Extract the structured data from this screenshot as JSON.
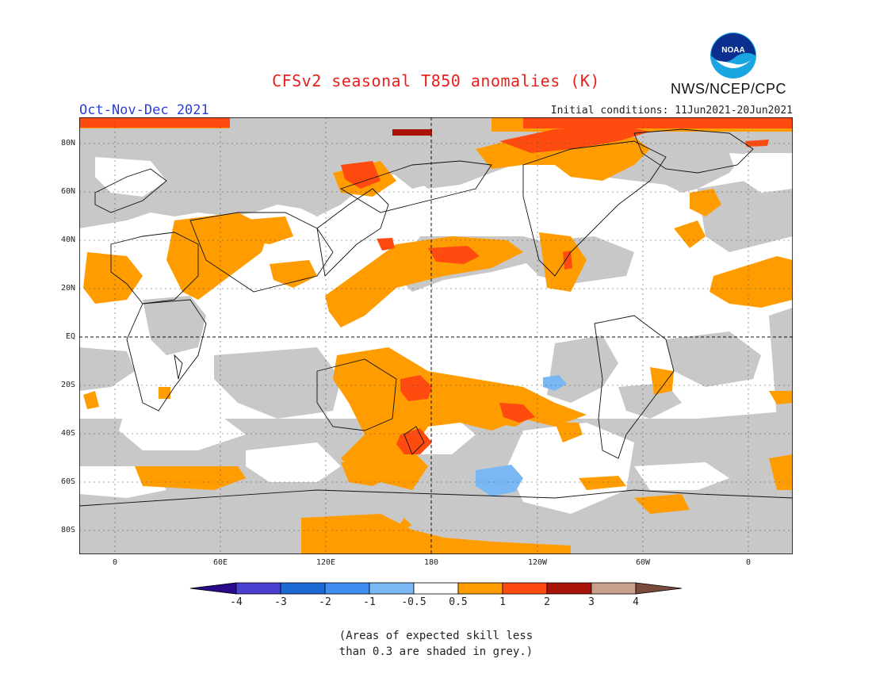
{
  "title": "CFSv2 seasonal T850 anomalies (K)",
  "period": "Oct-Nov-Dec 2021",
  "initial_conditions": "Initial conditions: 11Jun2021-20Jun2021",
  "agency": "NWS/NCEP/CPC",
  "logo_text": "NOAA",
  "y_axis_labels": [
    "80N",
    "60N",
    "40N",
    "20N",
    "EQ",
    "20S",
    "40S",
    "60S",
    "80S"
  ],
  "x_axis_labels": [
    "0",
    "60E",
    "120E",
    "180",
    "120W",
    "60W",
    "0"
  ],
  "colorbar": {
    "ticks": [
      "-4",
      "-3",
      "-2",
      "-1",
      "-0.5",
      "0.5",
      "1",
      "2",
      "3",
      "4"
    ],
    "colors": [
      "#2a0a8c",
      "#4a3fd0",
      "#1e6ad4",
      "#3d8ef0",
      "#7ab8f5",
      "#ffffff",
      "#ff9c00",
      "#ff4a10",
      "#a8140a",
      "#c8a08c",
      "#7a4a3c"
    ]
  },
  "colors": {
    "grey_skill": "#c8c8c8",
    "orange": "#ff9c00",
    "red_orange": "#ff4a10",
    "dark_red": "#a8140a",
    "light_blue": "#7ab8f5",
    "title_red": "#e8201c",
    "period_blue": "#2b3fd6"
  },
  "note_line1": "(Areas of expected skill less",
  "note_line2": "than 0.3 are shaded in grey.)"
}
